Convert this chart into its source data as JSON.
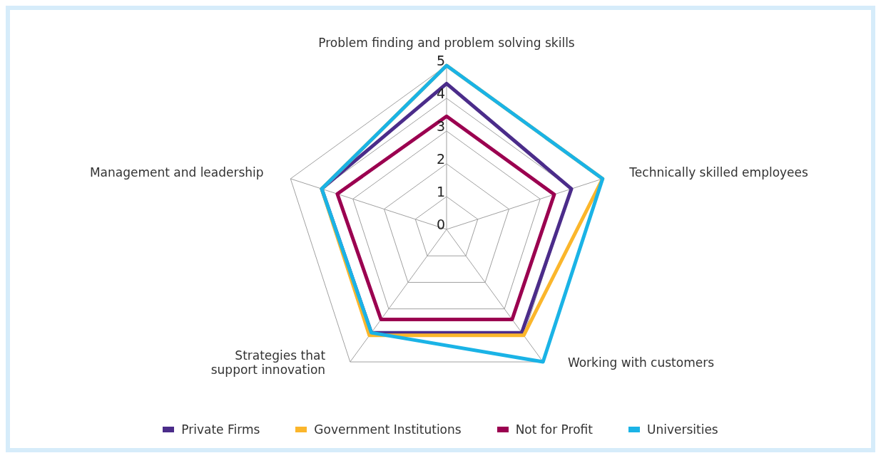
{
  "chart_data": {
    "type": "radar",
    "categories": [
      "Problem finding and problem solving skills",
      "Technically skilled employees",
      "Working with customers",
      "Strategies that support innovation",
      "Management and leadership"
    ],
    "series": [
      {
        "name": "Private Firms",
        "color": "#4b2c8a",
        "values": [
          4.45,
          4,
          3.9,
          3.9,
          4
        ]
      },
      {
        "name": "Government Institutions",
        "color": "#fbb62b",
        "values": [
          5,
          5,
          4,
          4,
          4
        ]
      },
      {
        "name": "Not for Profit",
        "color": "#9b0050",
        "values": [
          3.45,
          3.45,
          3.4,
          3.4,
          3.5
        ]
      },
      {
        "name": "Universities",
        "color": "#1ab3e6",
        "values": [
          5,
          5,
          5,
          3.9,
          4
        ]
      }
    ],
    "ylim": [
      0,
      5
    ],
    "yticks": [
      0,
      1,
      2,
      3,
      4,
      5
    ],
    "grid": true,
    "legend": "bottom",
    "marker": "none"
  }
}
